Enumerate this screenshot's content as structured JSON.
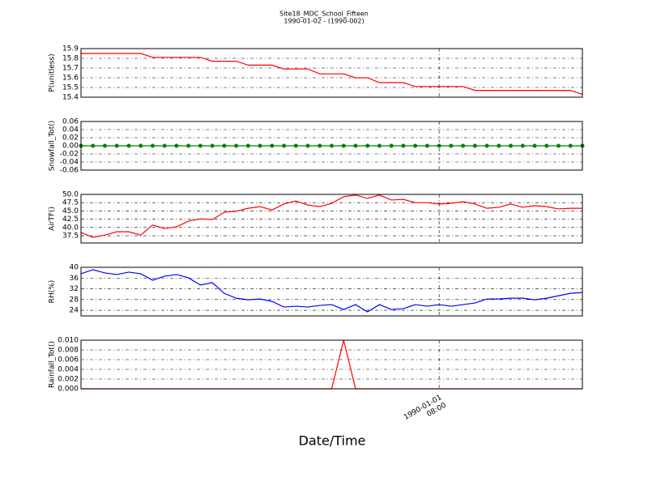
{
  "title": "Site18_MDC_School_Fifteen",
  "subtitle": "1990-01-02 - (1990-002)",
  "x_label": "Date/Time",
  "chart_data": [
    {
      "type": "line",
      "y_label": "P(unitless)",
      "color": "red",
      "grid": true,
      "ylim": [
        15.4,
        15.9
      ],
      "yticks": [
        15.4,
        15.5,
        15.6,
        15.7,
        15.8,
        15.9
      ],
      "values": [
        15.85,
        15.85,
        15.85,
        15.85,
        15.85,
        15.85,
        15.81,
        15.81,
        15.81,
        15.81,
        15.81,
        15.77,
        15.77,
        15.77,
        15.73,
        15.73,
        15.73,
        15.69,
        15.69,
        15.69,
        15.64,
        15.64,
        15.64,
        15.6,
        15.6,
        15.55,
        15.55,
        15.55,
        15.51,
        15.51,
        15.51,
        15.51,
        15.51,
        15.47,
        15.47,
        15.47,
        15.47,
        15.47,
        15.47,
        15.47,
        15.47,
        15.47,
        15.43
      ]
    },
    {
      "type": "line",
      "y_label": "Snowfall_Tot()",
      "color": "green",
      "markers": true,
      "grid": true,
      "ylim": [
        -0.06,
        0.06
      ],
      "yticks": [
        -0.06,
        -0.04,
        -0.02,
        {
          "value": 0,
          "label": "0.00"
        },
        0.02,
        0.04,
        0.06
      ],
      "values": [
        0,
        0,
        0,
        0,
        0,
        0,
        0,
        0,
        0,
        0,
        0,
        0,
        0,
        0,
        0,
        0,
        0,
        0,
        0,
        0,
        0,
        0,
        0,
        0,
        0,
        0,
        0,
        0,
        0,
        0,
        0,
        0,
        0,
        0,
        0,
        0,
        0,
        0,
        0,
        0,
        0,
        0,
        0
      ]
    },
    {
      "type": "line",
      "y_label": "AirTF()",
      "color": "red",
      "grid": true,
      "ylim": [
        35.3,
        50
      ],
      "yticks": [
        37.5,
        {
          "value": 40,
          "label": "40.0"
        },
        42.5,
        {
          "value": 45,
          "label": "45.0"
        },
        47.5,
        {
          "value": 50,
          "label": "50.0"
        }
      ],
      "values": [
        38.5,
        37.0,
        37.7,
        38.7,
        38.7,
        37.7,
        40.7,
        39.7,
        40.2,
        41.9,
        42.6,
        42.4,
        44.6,
        44.9,
        45.8,
        46.3,
        45.3,
        47.1,
        48.0,
        46.8,
        46.3,
        47.3,
        49.3,
        49.8,
        48.8,
        49.8,
        48.3,
        48.5,
        47.5,
        47.5,
        47.1,
        47.3,
        47.8,
        47.1,
        45.8,
        46.1,
        47.1,
        46.1,
        46.6,
        46.3,
        45.6,
        45.8,
        45.8
      ]
    },
    {
      "type": "line",
      "y_label": "RH(%)",
      "color": "blue",
      "grid": true,
      "ylim": [
        21.9,
        40
      ],
      "yticks": [
        24,
        28,
        32,
        36,
        40
      ],
      "values": [
        37.6,
        39.1,
        37.9,
        37.3,
        38.2,
        37.6,
        35.2,
        36.7,
        37.3,
        36.1,
        33.4,
        34.3,
        30.3,
        28.5,
        27.9,
        28.2,
        27.3,
        25.2,
        25.5,
        25.2,
        25.8,
        26.1,
        24.3,
        26.1,
        23.4,
        26.1,
        24.3,
        24.6,
        26.1,
        25.5,
        26.1,
        25.5,
        26.1,
        26.7,
        28.2,
        28.2,
        28.5,
        28.5,
        27.9,
        28.5,
        29.4,
        30.3,
        30.6
      ]
    },
    {
      "type": "line",
      "y_label": "Rainfall_Tot()",
      "color": "red",
      "grid": true,
      "ylim": [
        0,
        0.01
      ],
      "yticks": [
        {
          "value": 0,
          "label": "0.000"
        },
        {
          "value": 0.002,
          "label": "0.002"
        },
        {
          "value": 0.004,
          "label": "0.004"
        },
        {
          "value": 0.006,
          "label": "0.006"
        },
        {
          "value": 0.008,
          "label": "0.008"
        },
        {
          "value": 0.01,
          "label": "0.010"
        }
      ],
      "categories": [
        null,
        null,
        null,
        null,
        null,
        null,
        null,
        null,
        null,
        null,
        null,
        null,
        null,
        null,
        null,
        null,
        null,
        null,
        null,
        null,
        null,
        null,
        null,
        null,
        null,
        null,
        null,
        null,
        null,
        null,
        "1990-01-01\n08:00",
        null,
        null,
        null,
        null,
        null,
        null,
        null,
        null,
        null,
        null,
        null,
        null
      ],
      "values": [
        0,
        0,
        0,
        0,
        0,
        0,
        0,
        0,
        0,
        0,
        0,
        0,
        0,
        0,
        0,
        0,
        0,
        0,
        0,
        0,
        0,
        0,
        0.01,
        0,
        0,
        0,
        0,
        0,
        0,
        0,
        0,
        0,
        0,
        0,
        0,
        0,
        0,
        0,
        0,
        0,
        0,
        0,
        0
      ]
    }
  ]
}
